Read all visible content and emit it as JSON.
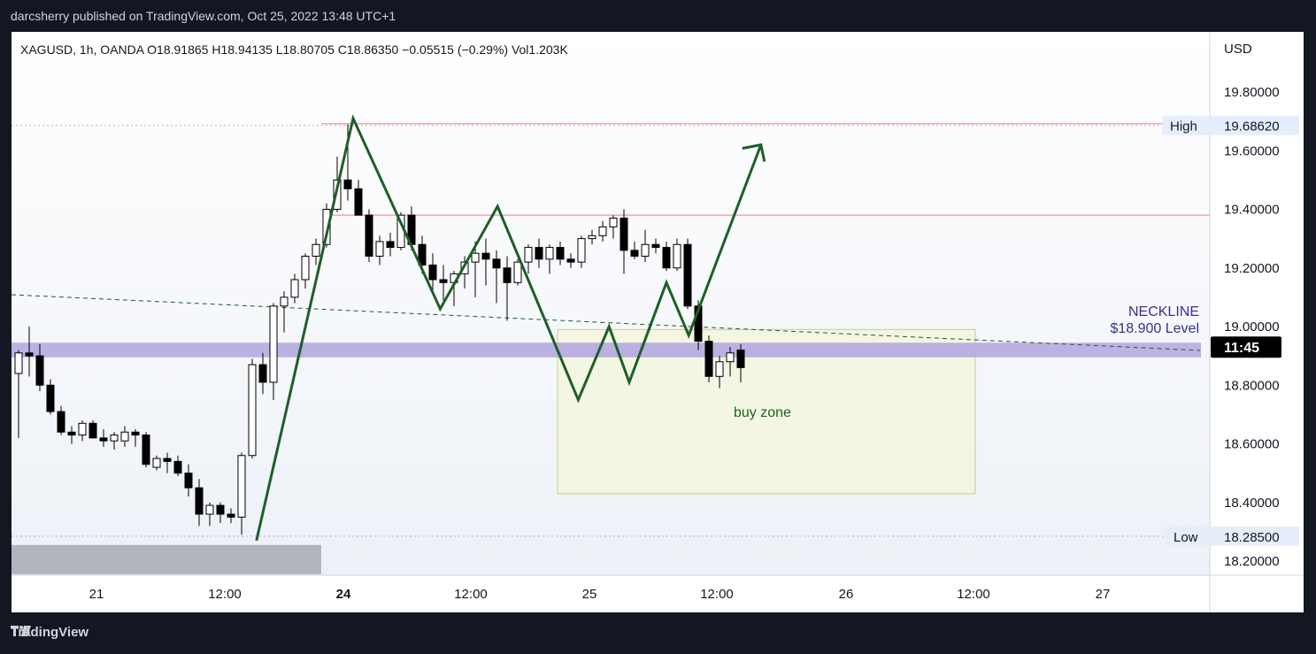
{
  "header": {
    "published": "darcsherry published on TradingView.com, Oct 25, 2022 13:48 UTC+1"
  },
  "footer": {
    "brand": "TradingView",
    "logo_icon": "tradingview-logo-icon"
  },
  "legend": {
    "symbol": "XAGUSD, 1h, OANDA",
    "open": "O18.91865",
    "high": "H18.94135",
    "low": "L18.80705",
    "close": "C18.86350",
    "change": "−0.05515 (−0.29%)",
    "volume": "Vol1.203K"
  },
  "price_axis": {
    "currency": "USD",
    "ticks": [
      "19.80000",
      "19.60000",
      "19.40000",
      "19.20000",
      "19.00000",
      "18.80000",
      "18.60000",
      "18.40000",
      "18.20000"
    ],
    "high_value": "19.68620",
    "high_label": "High",
    "low_value": "18.28500",
    "low_label": "Low",
    "countdown": "11:45"
  },
  "time_axis": {
    "ticks": [
      {
        "label": "21",
        "bold": false
      },
      {
        "label": "12:00",
        "bold": false
      },
      {
        "label": "24",
        "bold": true
      },
      {
        "label": "12:00",
        "bold": false
      },
      {
        "label": "25",
        "bold": false
      },
      {
        "label": "12:00",
        "bold": false
      },
      {
        "label": "26",
        "bold": false
      },
      {
        "label": "12:00",
        "bold": false
      },
      {
        "label": "27",
        "bold": false
      }
    ]
  },
  "annotations": {
    "neckline_title": "NECKLINE",
    "neckline_level": "$18.900 Level",
    "buy_zone": "buy zone"
  },
  "colors": {
    "projection": "#1e5e28",
    "neckline": "#1e5e28",
    "band": "#b5a8e0",
    "zone_fill": "#f3f5da",
    "resistance": "#eea6b4",
    "bear": "#000000",
    "bull": "#ffffff"
  },
  "chart_data": {
    "type": "candlestick",
    "symbol": "XAGUSD",
    "interval": "1h",
    "y_range": [
      18.15,
      19.95
    ],
    "candles": [
      [
        0,
        18.84,
        18.92,
        18.62,
        18.91
      ],
      [
        1,
        18.91,
        19.0,
        18.83,
        18.9
      ],
      [
        2,
        18.9,
        18.94,
        18.78,
        18.8
      ],
      [
        3,
        18.8,
        18.82,
        18.7,
        18.71
      ],
      [
        4,
        18.71,
        18.73,
        18.63,
        18.64
      ],
      [
        5,
        18.64,
        18.66,
        18.6,
        18.63
      ],
      [
        6,
        18.63,
        18.68,
        18.61,
        18.67
      ],
      [
        7,
        18.67,
        18.68,
        18.62,
        18.62
      ],
      [
        8,
        18.62,
        18.65,
        18.59,
        18.61
      ],
      [
        9,
        18.61,
        18.64,
        18.58,
        18.63
      ],
      [
        10,
        18.61,
        18.66,
        18.59,
        18.64
      ],
      [
        11,
        18.64,
        18.65,
        18.59,
        18.63
      ],
      [
        12,
        18.63,
        18.64,
        18.52,
        18.53
      ],
      [
        13,
        18.52,
        18.56,
        18.51,
        18.55
      ],
      [
        14,
        18.55,
        18.57,
        18.5,
        18.54
      ],
      [
        15,
        18.54,
        18.56,
        18.49,
        18.5
      ],
      [
        16,
        18.5,
        18.53,
        18.42,
        18.45
      ],
      [
        17,
        18.45,
        18.48,
        18.32,
        18.36
      ],
      [
        18,
        18.36,
        18.4,
        18.32,
        18.39
      ],
      [
        19,
        18.39,
        18.4,
        18.33,
        18.36
      ],
      [
        20,
        18.36,
        18.38,
        18.33,
        18.35
      ],
      [
        21,
        18.35,
        18.57,
        18.29,
        18.56
      ],
      [
        22,
        18.56,
        18.89,
        18.55,
        18.87
      ],
      [
        23,
        18.87,
        18.91,
        18.77,
        18.81
      ],
      [
        24,
        18.81,
        19.08,
        18.75,
        19.07
      ],
      [
        25,
        19.07,
        19.12,
        18.98,
        19.1
      ],
      [
        26,
        19.1,
        19.18,
        19.08,
        19.16
      ],
      [
        27,
        19.16,
        19.25,
        19.13,
        19.24
      ],
      [
        28,
        19.24,
        19.3,
        19.21,
        19.28
      ],
      [
        29,
        19.28,
        19.42,
        19.27,
        19.4
      ],
      [
        30,
        19.4,
        19.58,
        19.39,
        19.5
      ],
      [
        31,
        19.5,
        19.69,
        19.43,
        19.47
      ],
      [
        32,
        19.47,
        19.5,
        19.38,
        19.38
      ],
      [
        33,
        19.38,
        19.4,
        19.22,
        19.24
      ],
      [
        34,
        19.24,
        19.31,
        19.21,
        19.29
      ],
      [
        35,
        19.29,
        19.32,
        19.24,
        19.27
      ],
      [
        36,
        19.27,
        19.39,
        19.26,
        19.38
      ],
      [
        37,
        19.38,
        19.41,
        19.26,
        19.28
      ],
      [
        38,
        19.28,
        19.31,
        19.18,
        19.21
      ],
      [
        39,
        19.21,
        19.25,
        19.12,
        19.16
      ],
      [
        40,
        19.16,
        19.21,
        19.09,
        19.15
      ],
      [
        41,
        19.15,
        19.19,
        19.07,
        19.18
      ],
      [
        42,
        19.18,
        19.24,
        19.13,
        19.22
      ],
      [
        43,
        19.22,
        19.29,
        19.1,
        19.25
      ],
      [
        44,
        19.25,
        19.3,
        19.14,
        19.23
      ],
      [
        45,
        19.23,
        19.26,
        19.08,
        19.2
      ],
      [
        46,
        19.2,
        19.24,
        19.02,
        19.15
      ],
      [
        47,
        19.15,
        19.23,
        19.14,
        19.22
      ],
      [
        48,
        19.22,
        19.28,
        19.18,
        19.27
      ],
      [
        49,
        19.27,
        19.3,
        19.2,
        19.23
      ],
      [
        50,
        19.23,
        19.28,
        19.18,
        19.27
      ],
      [
        51,
        19.27,
        19.29,
        19.21,
        19.23
      ],
      [
        52,
        19.23,
        19.25,
        19.2,
        19.22
      ],
      [
        53,
        19.22,
        19.31,
        19.2,
        19.3
      ],
      [
        54,
        19.3,
        19.33,
        19.28,
        19.31
      ],
      [
        55,
        19.31,
        19.36,
        19.29,
        19.34
      ],
      [
        56,
        19.34,
        19.38,
        19.3,
        19.37
      ],
      [
        57,
        19.37,
        19.4,
        19.18,
        19.26
      ],
      [
        58,
        19.26,
        19.29,
        19.23,
        19.24
      ],
      [
        59,
        19.24,
        19.33,
        19.22,
        19.28
      ],
      [
        60,
        19.28,
        19.3,
        19.25,
        19.27
      ],
      [
        61,
        19.27,
        19.29,
        19.19,
        19.2
      ],
      [
        62,
        19.2,
        19.3,
        19.19,
        19.28
      ],
      [
        63,
        19.28,
        19.3,
        19.06,
        19.07
      ],
      [
        64,
        19.07,
        19.09,
        18.92,
        18.95
      ],
      [
        65,
        18.95,
        18.97,
        18.81,
        18.83
      ],
      [
        66,
        18.83,
        18.9,
        18.79,
        18.88
      ],
      [
        67,
        18.88,
        18.93,
        18.83,
        18.91
      ],
      [
        68,
        18.92,
        18.94,
        18.81,
        18.86
      ]
    ],
    "resistance_levels": [
      19.686,
      19.38
    ],
    "neckline": {
      "level": 18.9,
      "band": [
        18.895,
        18.945
      ]
    },
    "buy_zone": [
      18.43,
      18.99
    ],
    "projection": [
      {
        "t": 22.4,
        "p": 18.27
      },
      {
        "t": 31.5,
        "p": 19.71
      },
      {
        "t": 39.7,
        "p": 19.06
      },
      {
        "t": 45.1,
        "p": 19.41
      },
      {
        "t": 52.7,
        "p": 18.75
      },
      {
        "t": 55.6,
        "p": 19.0
      },
      {
        "t": 57.5,
        "p": 18.81
      },
      {
        "t": 61.0,
        "p": 19.15
      },
      {
        "t": 63.1,
        "p": 18.97
      },
      {
        "t": 69.9,
        "p": 19.62
      }
    ],
    "high": 19.6862,
    "low": 18.285,
    "last_price": 18.8635
  }
}
